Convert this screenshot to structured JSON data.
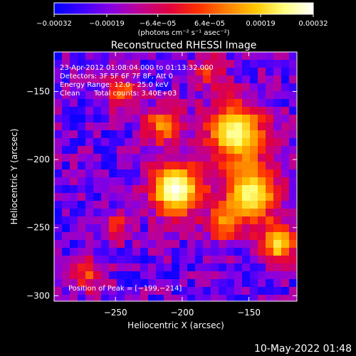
{
  "chart_data": {
    "type": "heatmap",
    "title": "Reconstructed RHESSI Image",
    "xlabel": "Heliocentric X (arcsec)",
    "ylabel": "Heliocentric Y (arcsec)",
    "xlim": [
      -296,
      -114
    ],
    "ylim": [
      -304,
      -121
    ],
    "x_ticks": [
      {
        "value": -250,
        "label": "−250"
      },
      {
        "value": -200,
        "label": "−200"
      },
      {
        "value": -150,
        "label": "−150"
      }
    ],
    "y_ticks": [
      {
        "value": -150,
        "label": "−150"
      },
      {
        "value": -200,
        "label": "−200"
      },
      {
        "value": -250,
        "label": "−250"
      },
      {
        "value": -300,
        "label": "−300"
      }
    ],
    "colorbar": {
      "range": [
        -0.00032,
        0.00032
      ],
      "tick_values": [
        -0.00032,
        -0.00019,
        -6.4e-05,
        6.4e-05,
        0.00019,
        0.00032
      ],
      "tick_labels": [
        "−0.00032",
        "−0.00019",
        "−6.4e−05",
        "6.4e−05",
        "0.00019",
        "0.00032"
      ],
      "units_text": "(photons cm⁻² s⁻¹ asec⁻²)",
      "colormap": [
        "#0000ff",
        "#4000ff",
        "#8a00e0",
        "#c00090",
        "#e00040",
        "#ff3000",
        "#ff8000",
        "#ffc800",
        "#ffff80",
        "#ffffff"
      ]
    },
    "sources": [
      {
        "x": -205,
        "y": -222,
        "amp": 1.0,
        "sigma": 14
      },
      {
        "x": -160,
        "y": -180,
        "amp": 0.9,
        "sigma": 16
      },
      {
        "x": -148,
        "y": -225,
        "amp": 0.85,
        "sigma": 15
      },
      {
        "x": -128,
        "y": -262,
        "amp": 0.8,
        "sigma": 10
      },
      {
        "x": -215,
        "y": -175,
        "amp": 0.6,
        "sigma": 10
      },
      {
        "x": -168,
        "y": -248,
        "amp": 0.55,
        "sigma": 9
      },
      {
        "x": -245,
        "y": -150,
        "amp": 0.6,
        "sigma": 8
      },
      {
        "x": -180,
        "y": -135,
        "amp": 0.4,
        "sigma": 9
      },
      {
        "x": -270,
        "y": -285,
        "amp": 0.45,
        "sigma": 9
      },
      {
        "x": -250,
        "y": -250,
        "amp": 0.4,
        "sigma": 8
      }
    ],
    "peak_marker": {
      "x": -199,
      "y": -214
    }
  },
  "annotations": {
    "time_range": "23-Apr-2012 01:08:04.000 to 01:13:32.000",
    "detectors": "Detectors: 3F 5F 6F 7F 8F, Att 0",
    "energy_range": "Energy Range: 12.0 - 25.0 keV",
    "clean": "Clean",
    "total_counts": "Total counts: 3.40E+03",
    "peak_position": "Position of Peak = [−199,−214]"
  },
  "footer": {
    "date_stamp": "10-May-2022 01:48"
  }
}
